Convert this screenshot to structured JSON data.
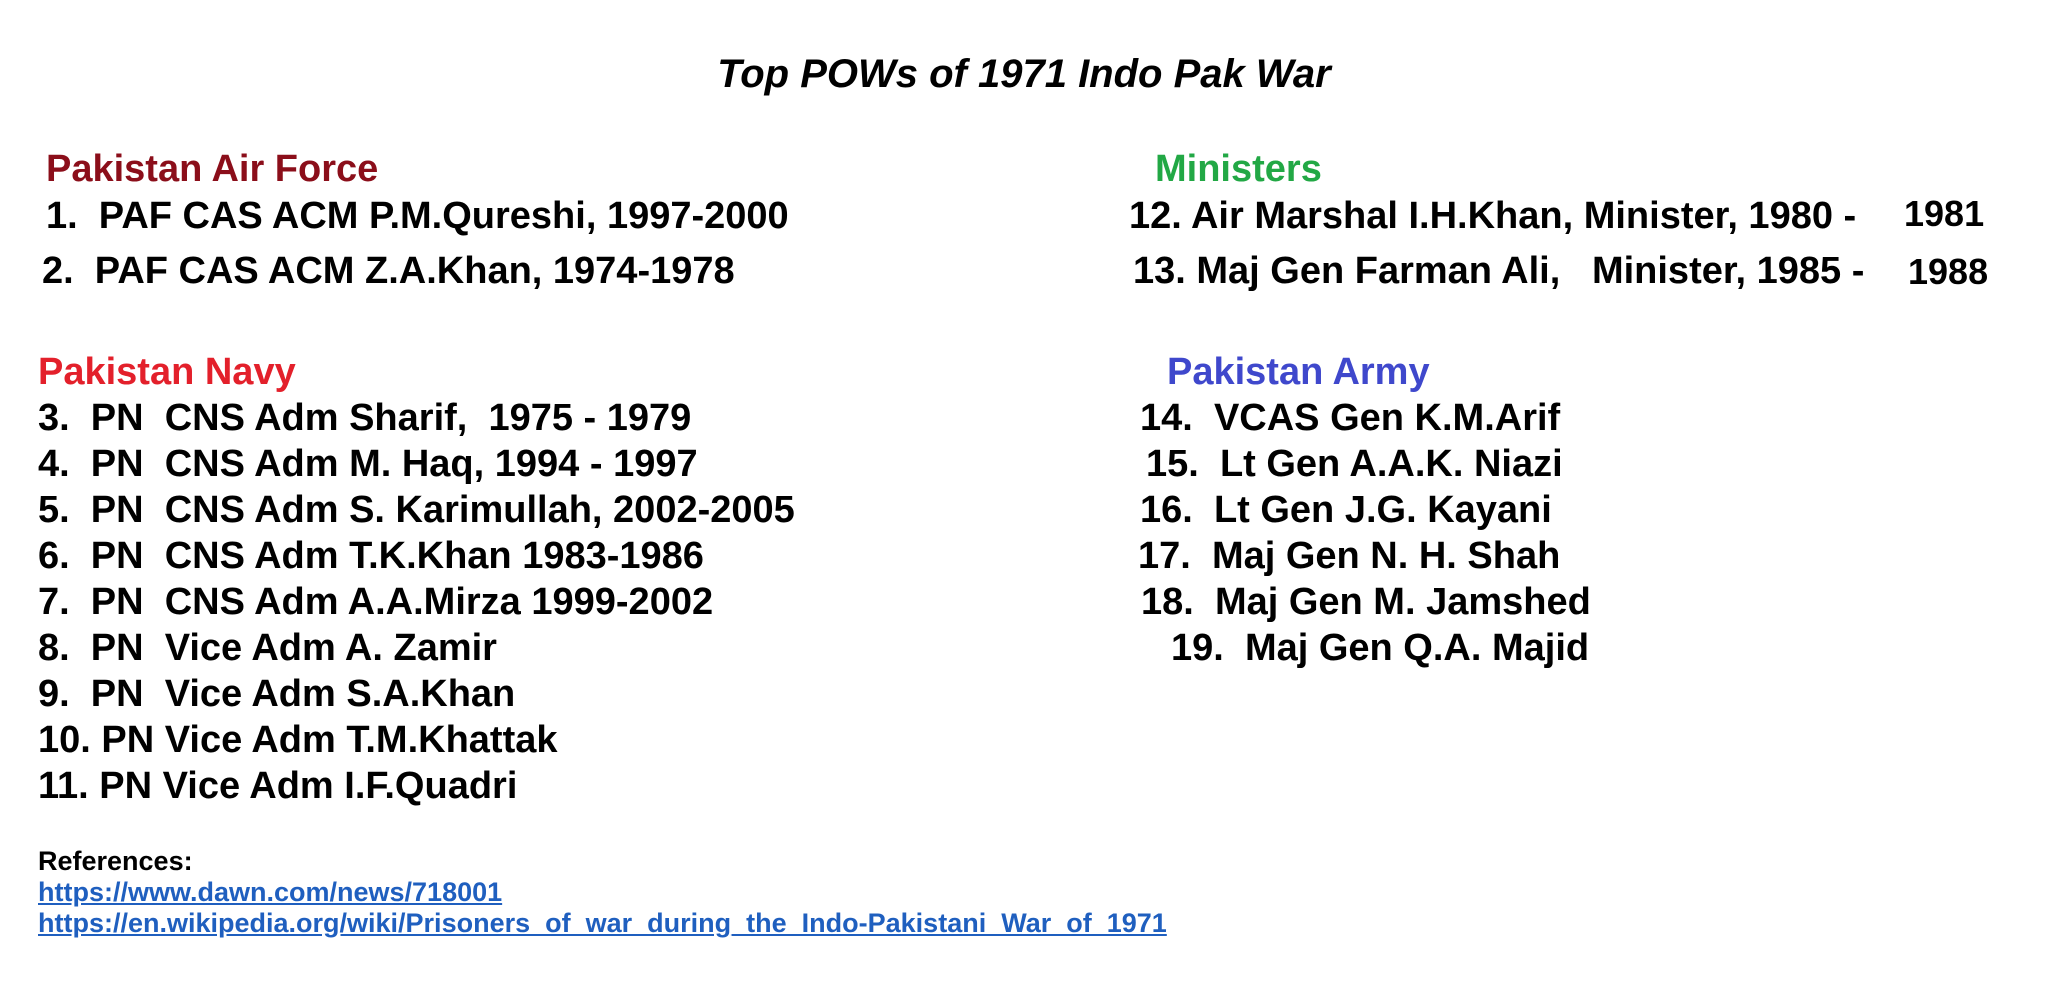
{
  "title": "Top POWs of 1971 Indo Pak War",
  "sections": {
    "air_force": {
      "heading": "Pakistan Air Force",
      "color": "#8B0E1A",
      "items": [
        "1.  PAF CAS ACM P.M.Qureshi, 1997-2000",
        "2.  PAF CAS ACM Z.A.Khan, 1974-1978"
      ]
    },
    "ministers": {
      "heading": "Ministers",
      "color": "#22A845",
      "items": [
        {
          "text": "12. Air Marshal I.H.Khan, Minister, 1980 -",
          "suffix": "1981"
        },
        {
          "text": "13. Maj Gen Farman Ali,   Minister, 1985 -",
          "suffix": "1988"
        }
      ]
    },
    "navy": {
      "heading": "Pakistan Navy",
      "color": "#E3202B",
      "items": [
        "3.  PN  CNS Adm Sharif,  1975 - 1979",
        "4.  PN  CNS Adm M. Haq, 1994 - 1997",
        "5.  PN  CNS Adm S. Karimullah, 2002-2005",
        "6.  PN  CNS Adm T.K.Khan 1983-1986",
        "7.  PN  CNS Adm A.A.Mirza 1999-2002",
        "8.  PN  Vice Adm A. Zamir",
        "9.  PN  Vice Adm S.A.Khan",
        "10. PN Vice Adm T.M.Khattak",
        "11. PN Vice Adm I.F.Quadri"
      ]
    },
    "army": {
      "heading": "Pakistan Army",
      "color": "#3F48CC",
      "items": [
        "14.  VCAS Gen K.M.Arif",
        "15.  Lt Gen A.A.K. Niazi",
        "16.  Lt Gen J.G. Kayani",
        "17.  Maj Gen N. H. Shah",
        "18.  Maj Gen M. Jamshed",
        "19.  Maj Gen Q.A. Majid"
      ]
    }
  },
  "references": {
    "label": "References:",
    "links": [
      "https://www.dawn.com/news/718001",
      "https://en.wikipedia.org/wiki/Prisoners_of_war_during_the_Indo-Pakistani_War_of_1971"
    ],
    "link_color": "#1F5FBF"
  }
}
